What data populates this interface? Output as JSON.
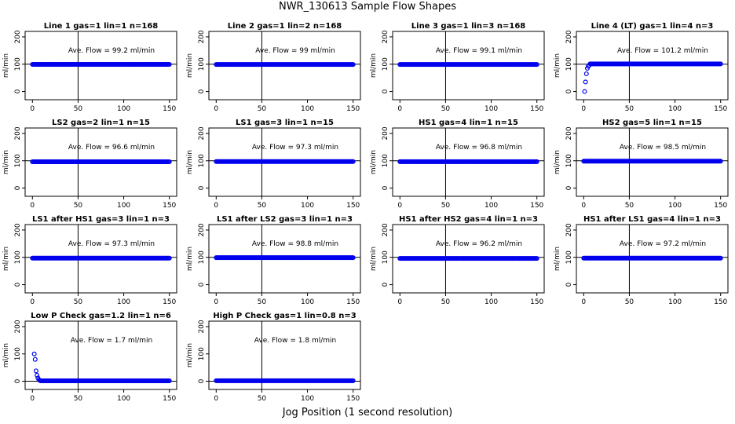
{
  "title": "NWR_130613  Sample Flow Shapes",
  "xlabel": "Jog Position (1 second resolution)",
  "chart_data": [
    {
      "type": "scatter",
      "title": "Line 1 gas=1 lin=1 n=168",
      "annotation": "Ave. Flow = 99.2  ml/min",
      "ylabel": "ml/min",
      "xlim": [
        0,
        150
      ],
      "ylim": [
        -30,
        220
      ],
      "xticks": [
        0,
        50,
        100,
        150
      ],
      "yticks": [
        0,
        100,
        200
      ],
      "vline": 50,
      "hline": 100,
      "shape": "flat",
      "level": 99.2
    },
    {
      "type": "scatter",
      "title": "Line 2 gas=1 lin=2 n=168",
      "annotation": "Ave. Flow = 99  ml/min",
      "ylabel": "ml/min",
      "xlim": [
        0,
        150
      ],
      "ylim": [
        -30,
        220
      ],
      "xticks": [
        0,
        50,
        100,
        150
      ],
      "yticks": [
        0,
        100,
        200
      ],
      "vline": 50,
      "hline": 100,
      "shape": "flat",
      "level": 99
    },
    {
      "type": "scatter",
      "title": "Line 3 gas=1 lin=3 n=168",
      "annotation": "Ave. Flow = 99.1  ml/min",
      "ylabel": "ml/min",
      "xlim": [
        0,
        150
      ],
      "ylim": [
        -30,
        220
      ],
      "xticks": [
        0,
        50,
        100,
        150
      ],
      "yticks": [
        0,
        100,
        200
      ],
      "vline": 50,
      "hline": 100,
      "shape": "flat",
      "level": 99.1
    },
    {
      "type": "scatter",
      "title": "Line 4 (LT) gas=1 lin=4 n=3",
      "annotation": "Ave. Flow = 101.2  ml/min",
      "ylabel": "ml/min",
      "xlim": [
        0,
        150
      ],
      "ylim": [
        -30,
        220
      ],
      "xticks": [
        0,
        50,
        100,
        150
      ],
      "yticks": [
        0,
        100,
        200
      ],
      "vline": 50,
      "hline": 100,
      "shape": "rise",
      "level": 101.2,
      "start_points": [
        [
          1,
          0
        ],
        [
          2,
          35
        ],
        [
          3,
          65
        ],
        [
          4,
          85
        ],
        [
          5,
          92
        ],
        [
          6,
          96
        ]
      ]
    },
    {
      "type": "scatter",
      "title": "LS2 gas=2 lin=1 n=15",
      "annotation": "Ave. Flow = 96.6  ml/min",
      "ylabel": "ml/min",
      "xlim": [
        0,
        150
      ],
      "ylim": [
        -30,
        220
      ],
      "xticks": [
        0,
        50,
        100,
        150
      ],
      "yticks": [
        0,
        100,
        200
      ],
      "vline": 50,
      "hline": 100,
      "shape": "flat",
      "level": 96.6
    },
    {
      "type": "scatter",
      "title": "LS1 gas=3 lin=1 n=15",
      "annotation": "Ave. Flow = 97.3  ml/min",
      "ylabel": "ml/min",
      "xlim": [
        0,
        150
      ],
      "ylim": [
        -30,
        220
      ],
      "xticks": [
        0,
        50,
        100,
        150
      ],
      "yticks": [
        0,
        100,
        200
      ],
      "vline": 50,
      "hline": 100,
      "shape": "flat",
      "level": 97.3
    },
    {
      "type": "scatter",
      "title": "HS1 gas=4 lin=1 n=15",
      "annotation": "Ave. Flow = 96.8  ml/min",
      "ylabel": "ml/min",
      "xlim": [
        0,
        150
      ],
      "ylim": [
        -30,
        220
      ],
      "xticks": [
        0,
        50,
        100,
        150
      ],
      "yticks": [
        0,
        100,
        200
      ],
      "vline": 50,
      "hline": 100,
      "shape": "flat",
      "level": 96.8
    },
    {
      "type": "scatter",
      "title": "HS2 gas=5 lin=1 n=15",
      "annotation": "Ave. Flow = 98.5  ml/min",
      "ylabel": "ml/min",
      "xlim": [
        0,
        150
      ],
      "ylim": [
        -30,
        220
      ],
      "xticks": [
        0,
        50,
        100,
        150
      ],
      "yticks": [
        0,
        100,
        200
      ],
      "vline": 50,
      "hline": 100,
      "shape": "flat",
      "level": 98.5
    },
    {
      "type": "scatter",
      "title": "LS1 after HS1 gas=3 lin=1 n=3",
      "annotation": "Ave. Flow = 97.3  ml/min",
      "ylabel": "ml/min",
      "xlim": [
        0,
        150
      ],
      "ylim": [
        -30,
        220
      ],
      "xticks": [
        0,
        50,
        100,
        150
      ],
      "yticks": [
        0,
        100,
        200
      ],
      "vline": 50,
      "hline": 100,
      "shape": "flat",
      "level": 97.3
    },
    {
      "type": "scatter",
      "title": "LS1 after LS2 gas=3 lin=1 n=3",
      "annotation": "Ave. Flow = 98.8  ml/min",
      "ylabel": "ml/min",
      "xlim": [
        0,
        150
      ],
      "ylim": [
        -30,
        220
      ],
      "xticks": [
        0,
        50,
        100,
        150
      ],
      "yticks": [
        0,
        100,
        200
      ],
      "vline": 50,
      "hline": 100,
      "shape": "flat",
      "level": 98.8
    },
    {
      "type": "scatter",
      "title": "HS1 after HS2 gas=4 lin=1 n=3",
      "annotation": "Ave. Flow = 96.2  ml/min",
      "ylabel": "ml/min",
      "xlim": [
        0,
        150
      ],
      "ylim": [
        -30,
        220
      ],
      "xticks": [
        0,
        50,
        100,
        150
      ],
      "yticks": [
        0,
        100,
        200
      ],
      "vline": 50,
      "hline": 100,
      "shape": "flat",
      "level": 96.2
    },
    {
      "type": "scatter",
      "title": "HS1 after LS1 gas=4 lin=1 n=3",
      "annotation": "Ave. Flow = 97.2  ml/min",
      "ylabel": "ml/min",
      "xlim": [
        0,
        150
      ],
      "ylim": [
        -30,
        220
      ],
      "xticks": [
        0,
        50,
        100,
        150
      ],
      "yticks": [
        0,
        100,
        200
      ],
      "vline": 50,
      "hline": 100,
      "shape": "flat",
      "level": 97.2
    },
    {
      "type": "scatter",
      "title": "Low P Check gas=1.2 lin=1 n=6",
      "annotation": "Ave. Flow = 1.7  ml/min",
      "ylabel": "ml/min",
      "xlim": [
        0,
        150
      ],
      "ylim": [
        -30,
        220
      ],
      "xticks": [
        0,
        50,
        100,
        150
      ],
      "yticks": [
        0,
        100,
        200
      ],
      "vline": 50,
      "hline": 0,
      "shape": "decay",
      "level": 1.7,
      "start_points": [
        [
          2,
          100
        ],
        [
          3,
          80
        ],
        [
          4,
          38
        ],
        [
          5,
          22
        ],
        [
          6,
          12
        ],
        [
          7,
          6
        ],
        [
          8,
          3
        ]
      ]
    },
    {
      "type": "scatter",
      "title": "High P Check gas=1 lin=0.8 n=3",
      "annotation": "Ave. Flow = 1.8  ml/min",
      "ylabel": "ml/min",
      "xlim": [
        0,
        150
      ],
      "ylim": [
        -30,
        220
      ],
      "xticks": [
        0,
        50,
        100,
        150
      ],
      "yticks": [
        0,
        100,
        200
      ],
      "vline": 50,
      "hline": 0,
      "shape": "flat",
      "level": 1.8
    }
  ],
  "colors": {
    "points": "#0000ee",
    "axis": "#000000",
    "background": "#ffffff"
  }
}
